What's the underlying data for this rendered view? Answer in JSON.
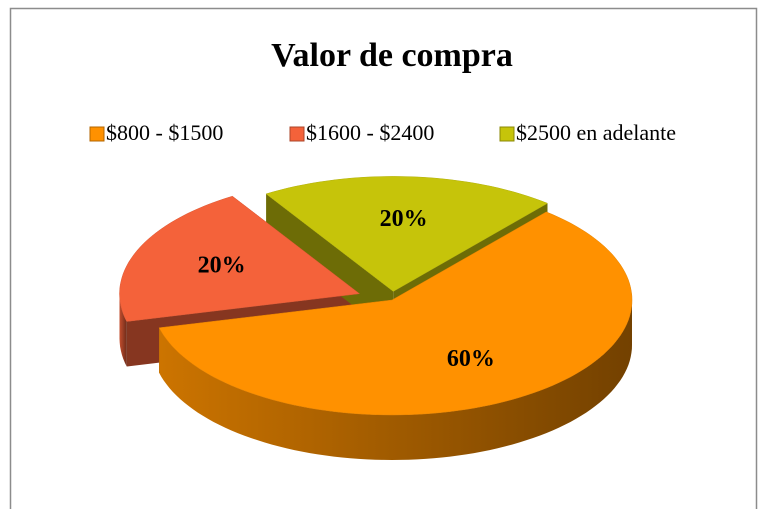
{
  "chart_data": {
    "type": "pie",
    "title": "Valor de compra",
    "categories": [
      "$800 - $1500",
      "$1600 - $2400",
      "$2500 en adelante"
    ],
    "values": [
      60,
      20,
      20
    ],
    "value_labels": [
      "60%",
      "20%",
      "20%"
    ],
    "colors": [
      "#FF9100",
      "#F4623A",
      "#C6C40A"
    ],
    "legend": "top"
  }
}
